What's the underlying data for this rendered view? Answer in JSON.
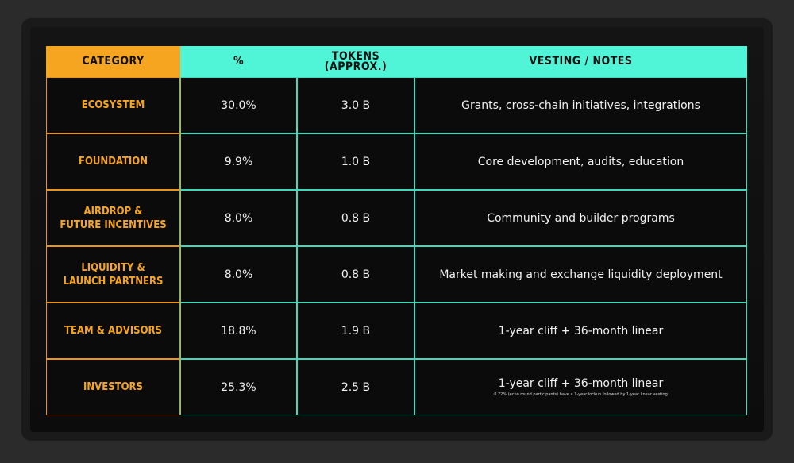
{
  "table": {
    "header": {
      "category": "CATEGORY",
      "percent": "%",
      "tokens": [
        "TOKENS",
        "(APPROX.)"
      ],
      "notes": "VESTING / NOTES"
    },
    "rows": [
      {
        "category": [
          "ECOSYSTEM"
        ],
        "percent": "30.0%",
        "tokens": "3.0 B",
        "notes": "Grants, cross-chain initiatives, integrations"
      },
      {
        "category": [
          "FOUNDATION"
        ],
        "percent": "9.9%",
        "tokens": "1.0 B",
        "notes": "Core development, audits, education"
      },
      {
        "category": [
          "AIRDROP &",
          "FUTURE INCENTIVES"
        ],
        "percent": "8.0%",
        "tokens": "0.8 B",
        "notes": "Community and builder programs"
      },
      {
        "category": [
          "LIQUIDITY &",
          "LAUNCH PARTNERS"
        ],
        "percent": "8.0%",
        "tokens": "0.8 B",
        "notes": "Market making and exchange liquidity deployment"
      },
      {
        "category": [
          "TEAM & ADVISORS"
        ],
        "percent": "18.8%",
        "tokens": "1.9 B",
        "notes": "1-year cliff + 36-month linear"
      },
      {
        "category": [
          "INVESTORS"
        ],
        "percent": "25.3%",
        "tokens": "2.5 B",
        "notes": "1-year cliff + 36-month linear",
        "detail": "0.72% (echo round participants) have a 1-year lockup followed by 1-year linear vesting"
      }
    ]
  }
}
